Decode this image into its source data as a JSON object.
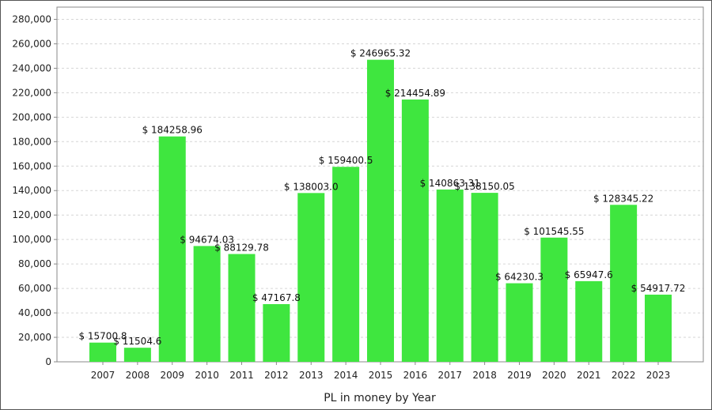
{
  "chart_data": {
    "type": "bar",
    "xlabel": "PL in money by Year",
    "ylabel": "",
    "ylim": [
      0,
      290000
    ],
    "y_ticks": [
      0,
      20000,
      40000,
      60000,
      80000,
      100000,
      120000,
      140000,
      160000,
      180000,
      200000,
      220000,
      240000,
      260000,
      280000
    ],
    "y_tick_labels": [
      "0",
      "20,000",
      "40,000",
      "60,000",
      "80,000",
      "100,000",
      "120,000",
      "140,000",
      "160,000",
      "180,000",
      "200,000",
      "220,000",
      "240,000",
      "260,000",
      "280,000"
    ],
    "grid": true,
    "categories": [
      "2007",
      "2008",
      "2009",
      "2010",
      "2011",
      "2012",
      "2013",
      "2014",
      "2015",
      "2016",
      "2017",
      "2018",
      "2019",
      "2020",
      "2021",
      "2022",
      "2023"
    ],
    "values": [
      15700.8,
      11504.6,
      184258.96,
      94674.03,
      88129.78,
      47167.8,
      138003.0,
      159400.5,
      246965.32,
      214454.89,
      140863.31,
      138150.05,
      64230.3,
      101545.55,
      65947.6,
      128345.22,
      54917.72
    ],
    "data_labels": [
      "$ 15700.8",
      "$ 11504.6",
      "$ 184258.96",
      "$ 94674.03",
      "$ 88129.78",
      "$ 47167.8",
      "$ 138003.0",
      "$ 159400.5",
      "$ 246965.32",
      "$ 214454.89",
      "$ 140863.31",
      "$ 138150.05",
      "$ 64230.3",
      "$ 101545.55",
      "$ 65947.6",
      "$ 128345.22",
      "$ 54917.72"
    ],
    "colors": {
      "bar": "#3fe63f",
      "grid": "#d6d6d6",
      "axis": "#8a8a8a"
    }
  }
}
